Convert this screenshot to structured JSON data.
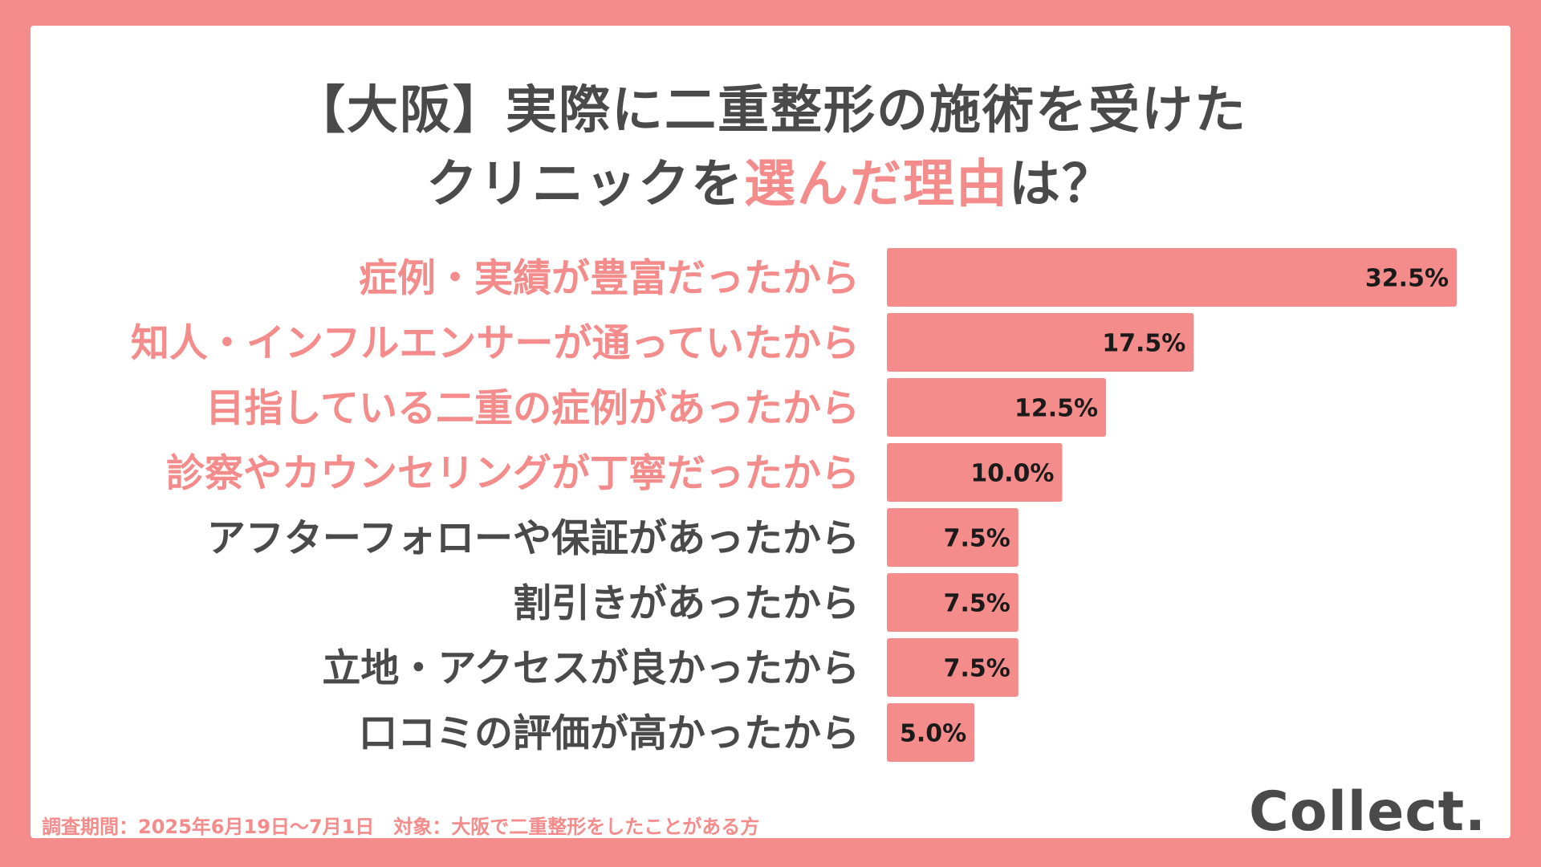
{
  "title": {
    "line1": "【大阪】実際に二重整形の施術を受けた",
    "line2_before": "クリニックを",
    "line2_highlight": "選んだ理由",
    "line2_after": "は？"
  },
  "colors": {
    "accent": "#f48c8b",
    "text_dark": "#4a4a4a",
    "value_text": "#1a1a1a"
  },
  "chart_data": {
    "type": "bar",
    "orientation": "horizontal",
    "categories": [
      "症例・実績が豊富だったから",
      "知人・インフルエンサーが通っていたから",
      "目指している二重の症例があったから",
      "診察やカウンセリングが丁寧だったから",
      "アフターフォローや保証があったから",
      "割引きがあったから",
      "立地・アクセスが良かったから",
      "口コミの評価が高かったから"
    ],
    "values": [
      32.5,
      17.5,
      12.5,
      10.0,
      7.5,
      7.5,
      7.5,
      5.0
    ],
    "value_labels": [
      "32.5%",
      "17.5%",
      "12.5%",
      "10.0%",
      "7.5%",
      "7.5%",
      "7.5%",
      "5.0%"
    ],
    "highlighted_top": 4,
    "xlim": [
      0,
      32.5
    ],
    "grid": false
  },
  "footnote": "調査期間：2025年6月19日〜7月1日　対象：大阪で二重整形をしたことがある方",
  "logo": "Collect."
}
